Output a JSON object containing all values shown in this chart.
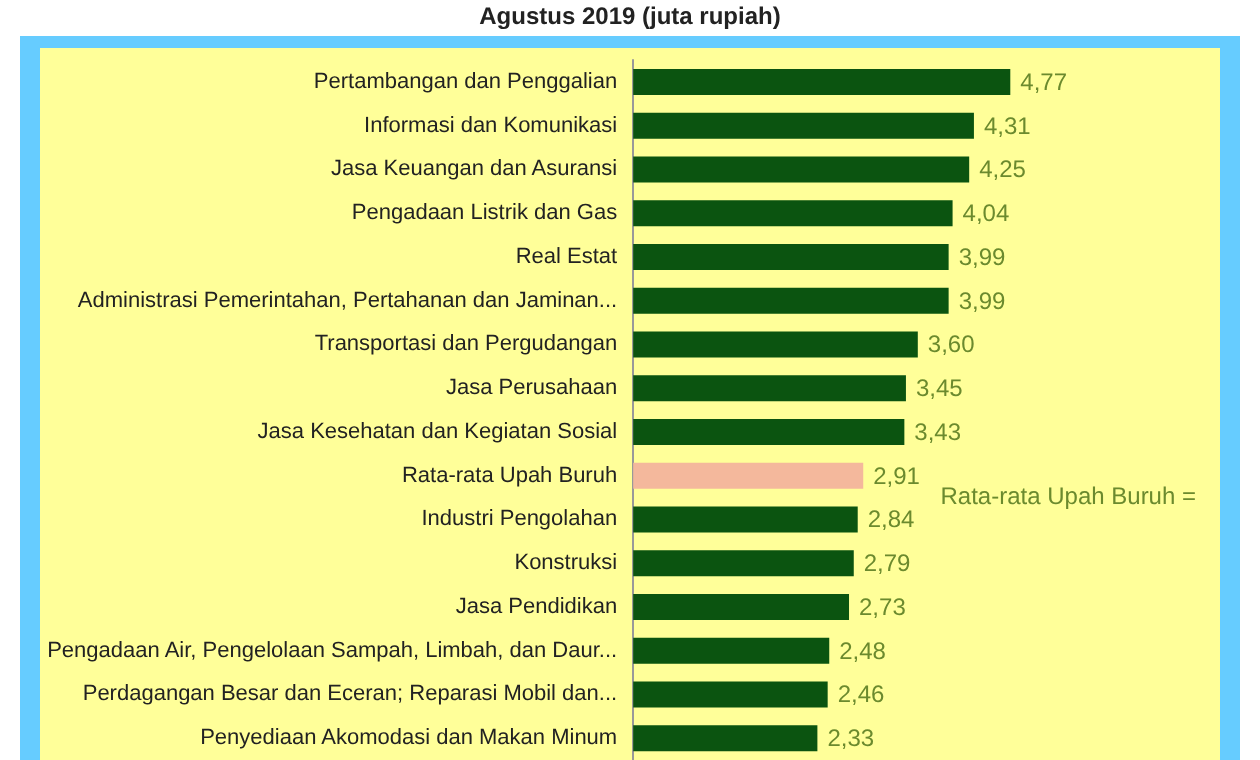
{
  "chart_data": {
    "type": "bar",
    "orientation": "horizontal",
    "title": "Agustus 2019 (juta rupiah)",
    "categories": [
      "Pertambangan dan Penggalian",
      "Informasi dan Komunikasi",
      "Jasa Keuangan dan Asuransi",
      "Pengadaan Listrik dan Gas",
      "Real Estat",
      "Administrasi Pemerintahan, Pertahanan dan Jaminan...",
      "Transportasi dan Pergudangan",
      "Jasa Perusahaan",
      "Jasa Kesehatan dan Kegiatan Sosial",
      "Rata-rata Upah Buruh",
      "Industri Pengolahan",
      "Konstruksi",
      "Jasa Pendidikan",
      "Pengadaan Air, Pengelolaan Sampah, Limbah, dan Daur...",
      "Perdagangan Besar dan Eceran; Reparasi Mobil dan...",
      "Penyediaan Akomodasi dan Makan Minum"
    ],
    "values": [
      4.77,
      4.31,
      4.25,
      4.04,
      3.99,
      3.99,
      3.6,
      3.45,
      3.43,
      2.91,
      2.84,
      2.79,
      2.73,
      2.48,
      2.46,
      2.33
    ],
    "value_labels": [
      "4,77",
      "4,31",
      "4,25",
      "4,04",
      "3,99",
      "3,99",
      "3,60",
      "3,45",
      "3,43",
      "2,91",
      "2,84",
      "2,79",
      "2,73",
      "2,48",
      "2,46",
      "2,33"
    ],
    "colors": [
      "#0b5410",
      "#0b5410",
      "#0b5410",
      "#0b5410",
      "#0b5410",
      "#0b5410",
      "#0b5410",
      "#0b5410",
      "#0b5410",
      "#f4b89c",
      "#0b5410",
      "#0b5410",
      "#0b5410",
      "#0b5410",
      "#0b5410",
      "#0b5410"
    ],
    "annotations": [
      "Rata-rata Upah Buruh ="
    ],
    "grid": false
  }
}
